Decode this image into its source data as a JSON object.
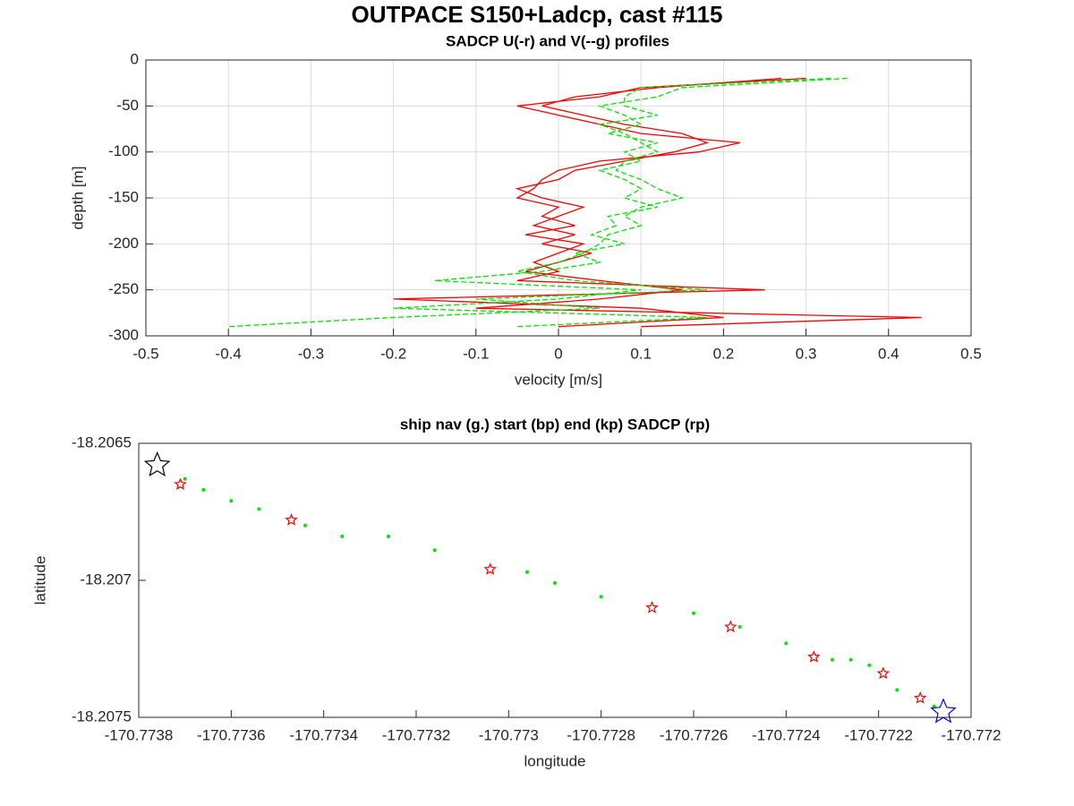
{
  "chart_data": [
    {
      "type": "profile",
      "title": "OUTPACE S150+Ladcp, cast #115",
      "subtitle": "SADCP U(-r) and V(--g) profiles",
      "xlabel": "velocity [m/s]",
      "ylabel": "depth [m]",
      "grid": true,
      "xlim": [
        -0.5,
        0.5
      ],
      "xticks": [
        -0.5,
        -0.4,
        -0.3,
        -0.2,
        -0.1,
        0,
        0.1,
        0.2,
        0.3,
        0.4,
        0.5
      ],
      "ylim": [
        -300,
        0
      ],
      "yticks": [
        -300,
        -250,
        -200,
        -150,
        -100,
        -50,
        0
      ],
      "depths": [
        -20,
        -30,
        -40,
        -50,
        -60,
        -70,
        -80,
        -90,
        -100,
        -110,
        -120,
        -130,
        -140,
        -150,
        -160,
        -170,
        -180,
        -190,
        -200,
        -210,
        -220,
        -230,
        -240,
        -250,
        -260,
        -270,
        -280,
        -290
      ],
      "series": [
        {
          "color": "#ff0000",
          "dashed": false,
          "values": [
            0.3,
            0.1,
            0.05,
            -0.05,
            0.0,
            0.05,
            0.1,
            0.22,
            0.17,
            0.05,
            0.0,
            -0.02,
            -0.03,
            -0.05,
            0.0,
            -0.02,
            0.02,
            -0.04,
            0.03,
            0.0,
            -0.03,
            0.0,
            -0.05,
            0.25,
            -0.2,
            0.1,
            0.2,
            0.0
          ]
        },
        {
          "color": "#ff0000",
          "dashed": false,
          "values": [
            0.27,
            0.12,
            0.02,
            -0.02,
            0.03,
            0.08,
            0.15,
            0.18,
            0.14,
            0.08,
            0.02,
            0.0,
            -0.05,
            -0.02,
            0.03,
            0.0,
            -0.03,
            0.02,
            -0.02,
            0.04,
            0.0,
            -0.04,
            0.05,
            0.15,
            0.05,
            -0.1,
            0.44,
            0.1
          ]
        },
        {
          "color": "#00e600",
          "dashed": true,
          "values": [
            0.33,
            0.1,
            0.08,
            0.08,
            0.12,
            0.05,
            0.08,
            0.1,
            0.12,
            0.08,
            0.07,
            0.1,
            0.12,
            0.15,
            0.1,
            0.08,
            0.1,
            0.06,
            0.05,
            0.03,
            0.0,
            -0.05,
            0.02,
            0.18,
            -0.1,
            0.05,
            -0.2,
            -0.4
          ]
        },
        {
          "color": "#00e600",
          "dashed": true,
          "values": [
            0.35,
            0.15,
            0.12,
            0.05,
            0.08,
            0.1,
            0.06,
            0.12,
            0.08,
            0.1,
            0.05,
            0.08,
            0.1,
            0.08,
            0.12,
            0.06,
            0.07,
            0.04,
            0.08,
            0.02,
            0.05,
            -0.02,
            -0.15,
            0.1,
            0.0,
            -0.2,
            0.18,
            -0.05
          ]
        }
      ]
    },
    {
      "type": "scatter",
      "title": "ship nav (g.) start (bp) end (kp) SADCP (rp)",
      "xlabel": "longitude",
      "ylabel": "latitude",
      "grid": false,
      "xlim": [
        -170.7738,
        -170.772
      ],
      "xticks": [
        -170.7738,
        -170.7736,
        -170.7734,
        -170.7732,
        -170.773,
        -170.7728,
        -170.7726,
        -170.7724,
        -170.7722,
        -170.772
      ],
      "ylim": [
        -18.2075,
        -18.2065
      ],
      "yticks": [
        -18.2075,
        -18.207,
        -18.2065
      ],
      "series": [
        {
          "color": "#00e600",
          "marker": "dot",
          "x": [
            -170.7737,
            -170.77366,
            -170.7736,
            -170.77354,
            -170.77344,
            -170.77336,
            -170.77326,
            -170.77316,
            -170.77296,
            -170.7729,
            -170.7728,
            -170.7726,
            -170.7725,
            -170.7724,
            -170.7723,
            -170.77226,
            -170.77222,
            -170.77216,
            -170.77208
          ],
          "values": [
            -18.20663,
            -18.20667,
            -18.20671,
            -18.20674,
            -18.2068,
            -18.20684,
            -18.20684,
            -18.20689,
            -18.20697,
            -18.20701,
            -18.20706,
            -18.20712,
            -18.20717,
            -18.20723,
            -18.20729,
            -18.20729,
            -18.20731,
            -18.2074,
            -18.20746
          ]
        },
        {
          "color": "#ff0000",
          "marker": "star",
          "x": [
            -170.77371,
            -170.77347,
            -170.77304,
            -170.77269,
            -170.77252,
            -170.77234,
            -170.77219,
            -170.77211
          ],
          "values": [
            -18.20665,
            -18.20678,
            -18.20696,
            -18.2071,
            -18.20717,
            -18.20728,
            -18.20734,
            -18.20743
          ]
        },
        {
          "color": "#000000",
          "marker": "bigstar",
          "x": [
            -170.77376
          ],
          "values": [
            -18.20658
          ]
        },
        {
          "color": "#0000ff",
          "marker": "bigstar",
          "x": [
            -170.77206
          ],
          "values": [
            -18.20748
          ]
        }
      ]
    }
  ]
}
